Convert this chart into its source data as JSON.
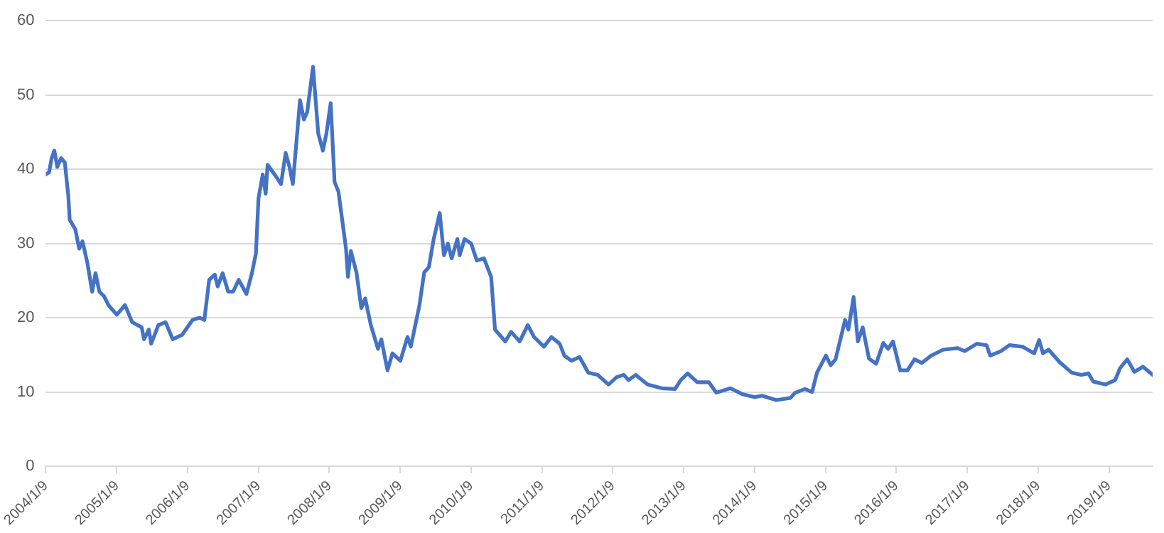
{
  "chart_data": {
    "type": "line",
    "grid": "y",
    "legend": false,
    "marker": "none",
    "line_style": "solid",
    "ylim": [
      0,
      60
    ],
    "yticks": [
      0,
      10,
      20,
      30,
      40,
      50,
      60
    ],
    "xlim": [
      "2004-01-09",
      "2019-08-22"
    ],
    "xticks": [
      {
        "value": "2004-01-09",
        "label": "2004/1/9"
      },
      {
        "value": "2005-01-09",
        "label": "2005/1/9"
      },
      {
        "value": "2006-01-09",
        "label": "2006/1/9"
      },
      {
        "value": "2007-01-09",
        "label": "2007/1/9"
      },
      {
        "value": "2008-01-09",
        "label": "2008/1/9"
      },
      {
        "value": "2009-01-09",
        "label": "2009/1/9"
      },
      {
        "value": "2010-01-09",
        "label": "2010/1/9"
      },
      {
        "value": "2011-01-09",
        "label": "2011/1/9"
      },
      {
        "value": "2012-01-09",
        "label": "2012/1/9"
      },
      {
        "value": "2013-01-09",
        "label": "2013/1/9"
      },
      {
        "value": "2014-01-09",
        "label": "2014/1/9"
      },
      {
        "value": "2015-01-09",
        "label": "2015/1/9"
      },
      {
        "value": "2016-01-09",
        "label": "2016/1/9"
      },
      {
        "value": "2017-01-09",
        "label": "2017/1/9"
      },
      {
        "value": "2018-01-09",
        "label": "2018/1/9"
      },
      {
        "value": "2019-01-09",
        "label": "2019/1/9"
      }
    ],
    "x": [
      "2004-01-09",
      "2004-01-26",
      "2004-02-08",
      "2004-02-22",
      "2004-03-08",
      "2004-03-28",
      "2004-04-16",
      "2004-05-04",
      "2004-05-11",
      "2004-06-09",
      "2004-06-29",
      "2004-07-16",
      "2004-08-10",
      "2004-09-04",
      "2004-09-21",
      "2004-10-11",
      "2004-11-04",
      "2004-11-29",
      "2005-01-09",
      "2005-02-20",
      "2005-03-29",
      "2005-05-17",
      "2005-05-29",
      "2005-06-23",
      "2005-07-05",
      "2005-08-11",
      "2005-09-17",
      "2005-10-24",
      "2005-12-12",
      "2006-02-03",
      "2006-03-12",
      "2006-04-05",
      "2006-04-30",
      "2006-05-29",
      "2006-06-13",
      "2006-07-08",
      "2006-08-06",
      "2006-08-31",
      "2006-09-29",
      "2006-11-08",
      "2006-12-07",
      "2006-12-27",
      "2007-01-09",
      "2007-01-31",
      "2007-02-15",
      "2007-02-25",
      "2007-04-10",
      "2007-05-05",
      "2007-05-29",
      "2007-06-18",
      "2007-07-05",
      "2007-08-11",
      "2007-08-31",
      "2007-09-17",
      "2007-10-17",
      "2007-11-13",
      "2007-12-07",
      "2007-12-25",
      "2008-01-16",
      "2008-02-05",
      "2008-02-25",
      "2008-04-04",
      "2008-04-14",
      "2008-04-29",
      "2008-05-28",
      "2008-06-22",
      "2008-07-12",
      "2008-08-10",
      "2008-09-16",
      "2008-10-03",
      "2008-11-04",
      "2008-11-29",
      "2009-01-09",
      "2009-02-15",
      "2009-03-04",
      "2009-04-17",
      "2009-05-12",
      "2009-06-05",
      "2009-06-30",
      "2009-07-31",
      "2009-08-22",
      "2009-09-11",
      "2009-10-01",
      "2009-10-30",
      "2009-11-11",
      "2009-12-06",
      "2010-01-09",
      "2010-02-07",
      "2010-03-16",
      "2010-04-22",
      "2010-05-12",
      "2010-07-04",
      "2010-08-03",
      "2010-09-16",
      "2010-10-28",
      "2010-11-29",
      "2011-01-19",
      "2011-02-27",
      "2011-04-10",
      "2011-05-04",
      "2011-06-10",
      "2011-07-22",
      "2011-09-04",
      "2011-10-23",
      "2011-12-18",
      "2012-01-29",
      "2012-03-05",
      "2012-03-30",
      "2012-05-06",
      "2012-07-06",
      "2012-09-17",
      "2012-11-25",
      "2012-12-24",
      "2013-01-29",
      "2013-03-19",
      "2013-05-19",
      "2013-06-25",
      "2013-09-06",
      "2013-11-06",
      "2014-01-09",
      "2014-02-15",
      "2014-04-30",
      "2014-07-13",
      "2014-08-06",
      "2014-09-25",
      "2014-11-01",
      "2014-11-26",
      "2015-01-11",
      "2015-02-05",
      "2015-03-02",
      "2015-04-20",
      "2015-05-07",
      "2015-06-03",
      "2015-06-25",
      "2015-07-20",
      "2015-08-21",
      "2015-09-27",
      "2015-11-03",
      "2015-11-28",
      "2015-12-23",
      "2016-01-29",
      "2016-03-06",
      "2016-04-12",
      "2016-05-19",
      "2016-07-07",
      "2016-09-07",
      "2016-11-20",
      "2016-12-27",
      "2017-02-27",
      "2017-04-18",
      "2017-05-07",
      "2017-07-01",
      "2017-08-14",
      "2017-10-20",
      "2017-12-20",
      "2018-01-14",
      "2018-02-03",
      "2018-03-04",
      "2018-04-30",
      "2018-07-01",
      "2018-08-19",
      "2018-09-25",
      "2018-10-20",
      "2018-12-21",
      "2019-02-10",
      "2019-03-07",
      "2019-04-13",
      "2019-05-20",
      "2019-07-03",
      "2019-08-22"
    ],
    "series": [
      {
        "color": "#4472c4",
        "values": [
          39.3,
          39.6,
          41.5,
          42.5,
          40.3,
          41.5,
          40.9,
          36.4,
          33.2,
          31.9,
          29.3,
          30.3,
          27.4,
          23.5,
          26,
          23.5,
          22.9,
          21.6,
          20.4,
          21.7,
          19.4,
          18.7,
          17.1,
          18.4,
          16.5,
          19,
          19.4,
          17.1,
          17.7,
          19.7,
          20,
          19.7,
          25.1,
          25.8,
          24.2,
          26,
          23.5,
          23.5,
          25.1,
          23.2,
          26.1,
          28.7,
          36.1,
          39.3,
          36.7,
          40.6,
          39,
          38,
          42.2,
          40.3,
          38,
          49.3,
          46.7,
          47.7,
          53.8,
          44.8,
          42.5,
          44.8,
          48.9,
          38.3,
          37,
          29.3,
          25.5,
          29,
          26.1,
          21.3,
          22.6,
          19,
          15.8,
          17.1,
          12.9,
          15.2,
          14.2,
          17.4,
          16.1,
          21.6,
          26.1,
          26.8,
          30.6,
          34.1,
          28.4,
          30,
          28,
          30.6,
          28.4,
          30.6,
          30,
          27.7,
          28,
          25.5,
          18.4,
          16.8,
          18.1,
          16.8,
          19,
          17.4,
          16.1,
          17.4,
          16.5,
          14.9,
          14.2,
          14.7,
          12.6,
          12.3,
          11,
          12,
          12.3,
          11.6,
          12.3,
          11,
          10.5,
          10.4,
          11.6,
          12.5,
          11.3,
          11.3,
          9.9,
          10.5,
          9.7,
          9.3,
          9.5,
          8.9,
          9.2,
          9.9,
          10.4,
          10,
          12.6,
          14.9,
          13.6,
          14.4,
          19.7,
          18.4,
          22.8,
          16.8,
          18.7,
          14.5,
          13.8,
          16.6,
          15.8,
          16.8,
          12.9,
          12.9,
          14.4,
          13.9,
          14.9,
          15.7,
          15.9,
          15.5,
          16.5,
          16.3,
          14.9,
          15.5,
          16.3,
          16.1,
          15.2,
          17,
          15.2,
          15.7,
          14,
          12.6,
          12.3,
          12.5,
          11.4,
          11,
          11.6,
          13.2,
          14.4,
          12.7,
          13.4,
          12.3
        ]
      }
    ]
  }
}
